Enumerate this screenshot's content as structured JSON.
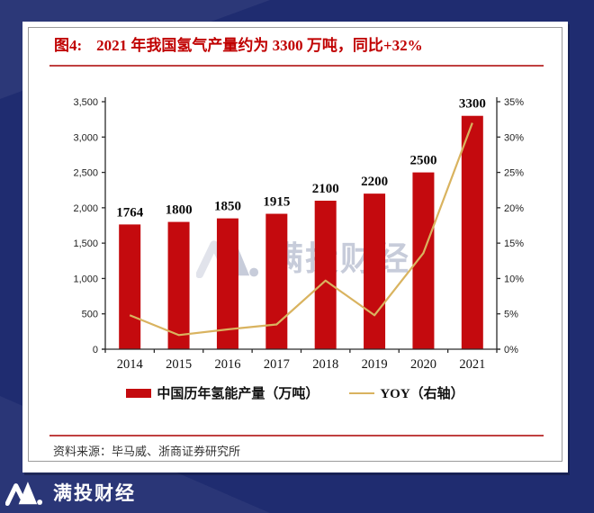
{
  "figure": {
    "label": "图4:",
    "title": "2021 年我国氢气产量约为 3300 万吨，同比+32%"
  },
  "source": {
    "text": "资料来源：毕马威、浙商证券研究所"
  },
  "watermark": {
    "text": "满投财经"
  },
  "footer": {
    "brand": "满投财经"
  },
  "colors": {
    "background": "#1F2C70",
    "card": "#FFFFFF",
    "bar": "#C40A0E",
    "line": "#D9B35F",
    "title_red": "#C00000",
    "rule_red": "#C04040",
    "axis": "#2B2B2B",
    "watermark": "#9BA4BD"
  },
  "chart_data": {
    "type": "bar",
    "title": "2021 年我国氢气产量约为 3300 万吨，同比+32%",
    "categories": [
      "2014",
      "2015",
      "2016",
      "2017",
      "2018",
      "2019",
      "2020",
      "2021"
    ],
    "series": [
      {
        "name": "中国历年氢能产量（万吨）",
        "type": "bar",
        "axis": "left",
        "color": "#C40A0E",
        "values": [
          1764,
          1800,
          1850,
          1915,
          2100,
          2200,
          2500,
          3300
        ]
      },
      {
        "name": "YOY（右轴）",
        "type": "line",
        "axis": "right",
        "color": "#D9B35F",
        "values": [
          4.8,
          2.0,
          2.8,
          3.5,
          9.7,
          4.8,
          13.6,
          32.0
        ]
      }
    ],
    "bar_labels": [
      "1764",
      "1800",
      "1850",
      "1915",
      "2100",
      "2200",
      "2500",
      "3300"
    ],
    "left_axis": {
      "min": 0,
      "max": 3500,
      "ticks": [
        "3,500",
        "3,000",
        "2,500",
        "2,000",
        "1,500",
        "1,000",
        "500",
        "0"
      ]
    },
    "right_axis": {
      "min": 0,
      "max": 35,
      "ticks": [
        "35%",
        "30%",
        "25%",
        "20%",
        "15%",
        "10%",
        "5%",
        "0%"
      ]
    },
    "legend_position": "bottom",
    "grid": false
  }
}
